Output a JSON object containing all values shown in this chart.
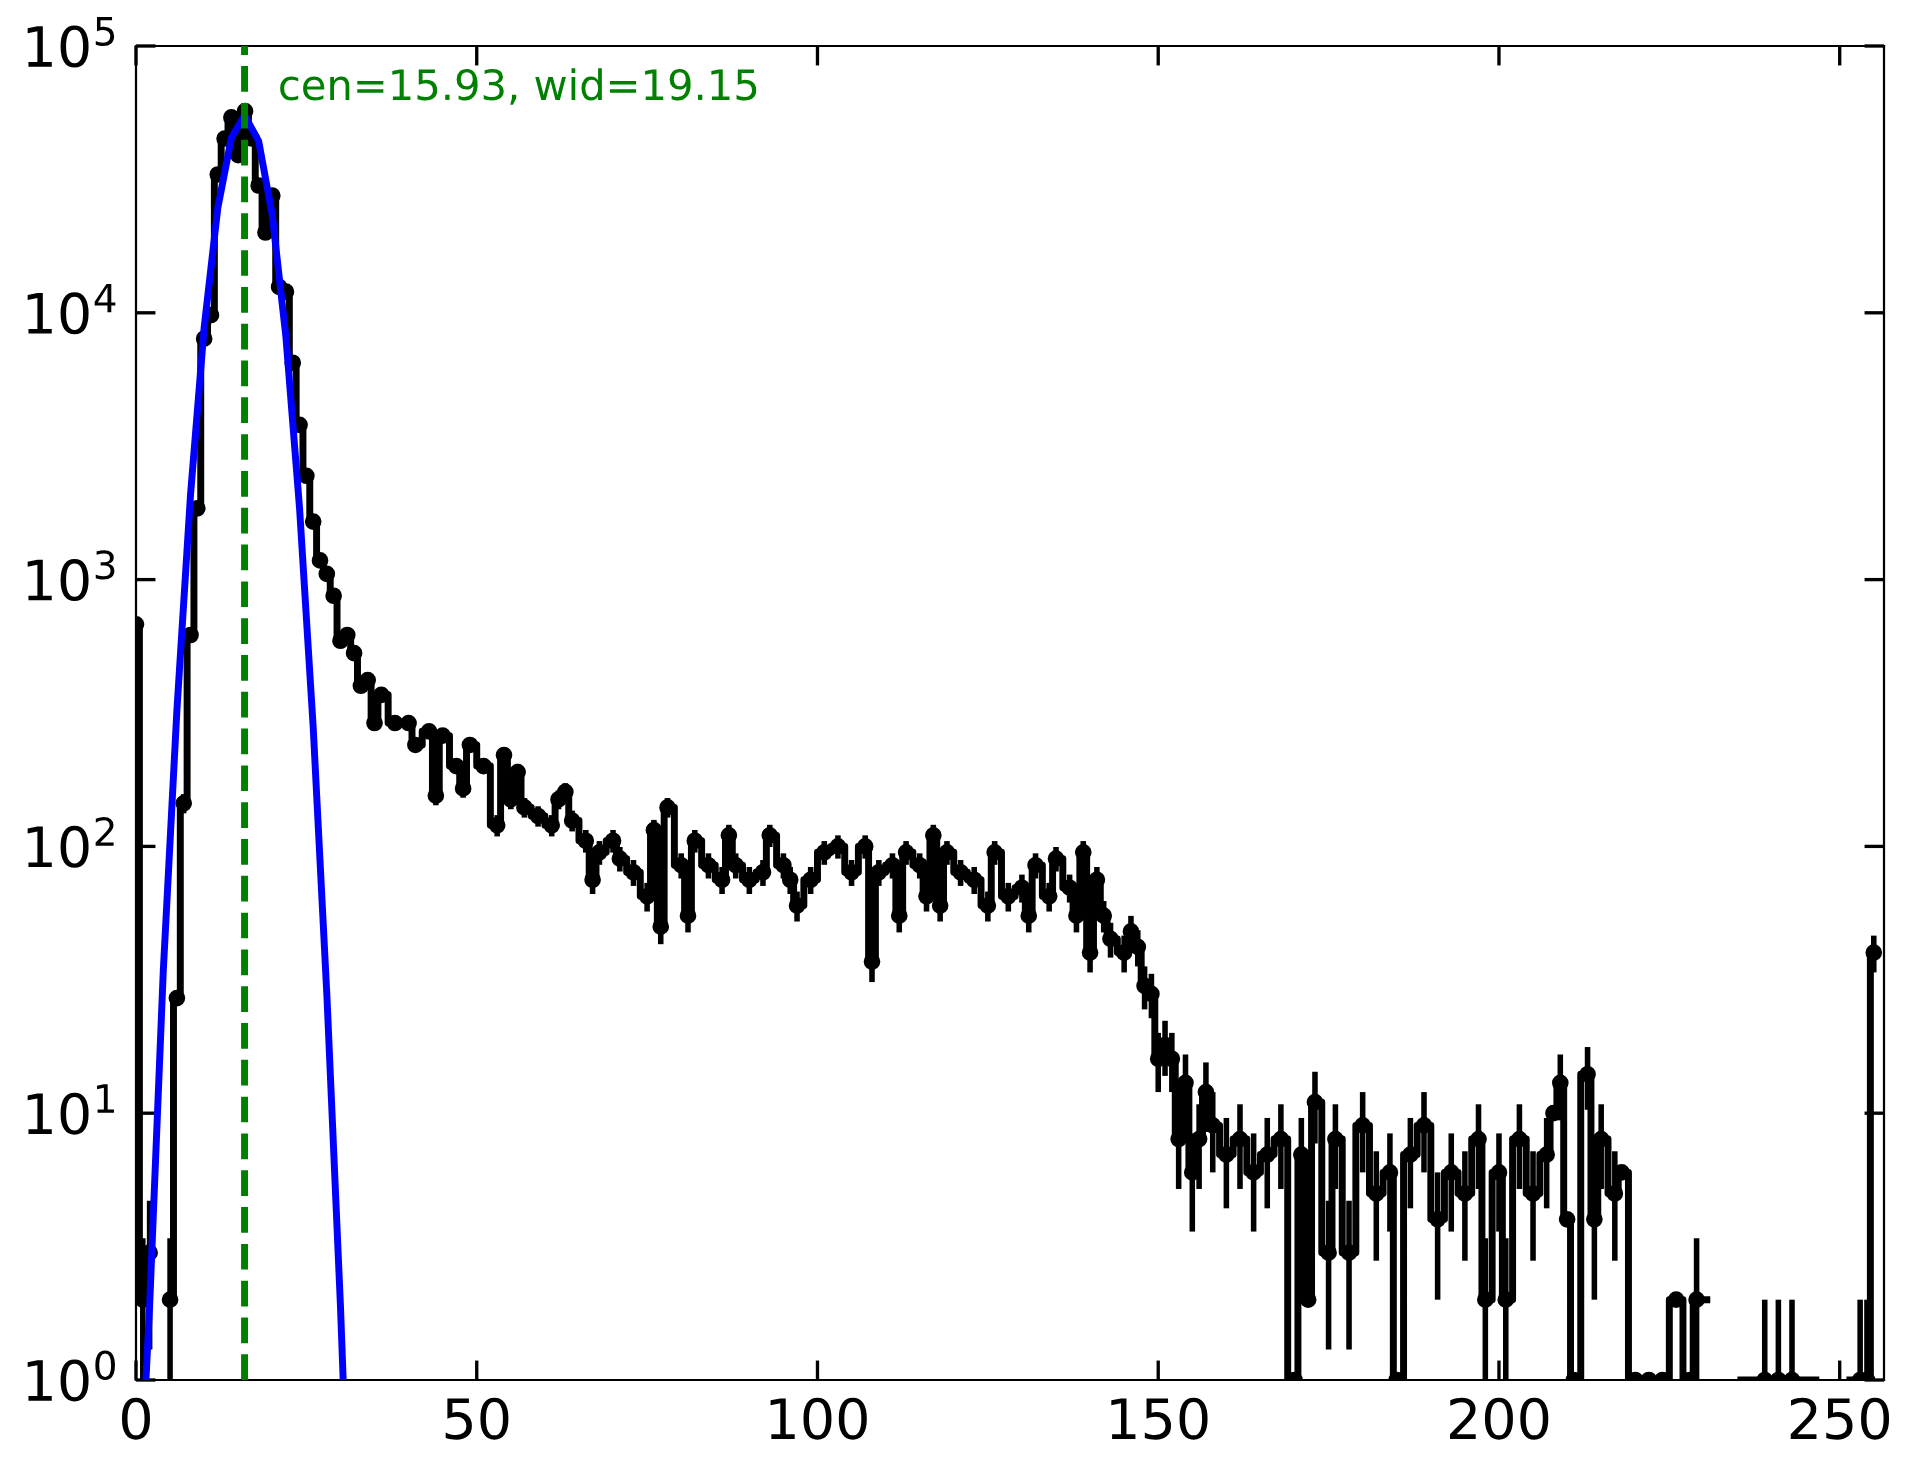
{
  "chart_data": {
    "type": "step",
    "log": "y",
    "xlim": [
      0,
      256.5
    ],
    "ylim": [
      1,
      100000
    ],
    "xticks": [
      0,
      50,
      100,
      150,
      200,
      250
    ],
    "yticks": [
      {
        "value": 1,
        "label": "10$^{0}$"
      },
      {
        "value": 10,
        "label": "10$^{1}$"
      },
      {
        "value": 100,
        "label": "10$^{2}$"
      },
      {
        "value": 1000,
        "label": "10$^{3}$"
      },
      {
        "value": 10000,
        "label": "10$^{4}$"
      },
      {
        "value": 100000,
        "label": "10$^{5}$"
      }
    ],
    "grid": false,
    "legend": false,
    "ref_lines": [
      {
        "axis": "x",
        "value": 15.93,
        "label": "cen=15.93, wid=19.15",
        "color": "#008000",
        "line_style": "dashed"
      }
    ],
    "series": [
      {
        "color": "#000000",
        "marker": "circle",
        "line_style": "solid",
        "x": [
          0,
          1,
          2,
          3,
          4,
          5,
          6,
          7,
          8,
          9,
          10,
          11,
          12,
          13,
          14,
          15,
          16,
          17,
          18,
          19,
          20,
          21,
          22,
          23,
          24,
          25,
          26,
          27,
          28,
          29,
          30,
          31,
          32,
          33,
          34,
          35,
          36,
          38,
          40,
          41,
          43,
          44,
          45,
          47,
          48,
          49,
          51,
          53,
          54,
          55,
          56,
          57,
          59,
          61,
          62,
          63,
          64,
          66,
          67,
          68,
          70,
          71,
          73,
          75,
          76,
          77,
          78,
          80,
          81,
          82,
          84,
          86,
          87,
          88,
          90,
          92,
          93,
          95,
          96,
          97,
          99,
          101,
          103,
          105,
          107,
          108,
          109,
          111,
          112,
          113,
          115,
          116,
          117,
          118,
          119,
          121,
          123,
          125,
          126,
          128,
          130,
          131,
          132,
          134,
          135,
          137,
          138,
          139,
          140,
          141,
          142,
          143,
          145,
          146,
          147,
          148,
          149,
          150,
          151,
          152,
          153,
          154,
          155,
          156,
          157,
          158,
          160,
          162,
          164,
          166,
          168,
          170,
          171,
          172,
          173,
          175,
          176,
          178,
          180,
          182,
          184,
          185,
          187,
          189,
          191,
          193,
          195,
          197,
          198,
          200,
          201,
          203,
          205,
          207,
          208,
          209,
          210,
          211,
          213,
          214,
          215,
          217,
          218,
          220,
          222,
          224,
          226,
          228,
          229,
          232,
          239,
          241,
          243,
          250,
          253,
          254,
          255
        ],
        "values": [
          680,
          2,
          3,
          null,
          null,
          2,
          27,
          145,
          620,
          1850,
          8000,
          9800,
          33000,
          45000,
          54000,
          39000,
          57000,
          45000,
          30000,
          20000,
          27500,
          12500,
          12000,
          6500,
          3800,
          2450,
          1650,
          1180,
          1050,
          870,
          590,
          620,
          530,
          400,
          420,
          290,
          370,
          290,
          290,
          240,
          270,
          155,
          260,
          200,
          165,
          240,
          200,
          120,
          220,
          150,
          190,
          140,
          130,
          120,
          150,
          160,
          125,
          105,
          75,
          95,
          105,
          90,
          80,
          65,
          115,
          50,
          140,
          85,
          55,
          105,
          85,
          75,
          110,
          85,
          75,
          80,
          110,
          85,
          75,
          60,
          75,
          95,
          100,
          80,
          100,
          37,
          80,
          85,
          55,
          95,
          85,
          65,
          110,
          60,
          95,
          80,
          75,
          60,
          95,
          65,
          70,
          55,
          85,
          65,
          90,
          70,
          55,
          95,
          40,
          75,
          55,
          45,
          40,
          48,
          42,
          30,
          28,
          16,
          18,
          16,
          8,
          13,
          6,
          8,
          12,
          9,
          7,
          8,
          6,
          7,
          8,
          1,
          7,
          2,
          11,
          3,
          8,
          3,
          9,
          5,
          6,
          1,
          7,
          9,
          4,
          6,
          5,
          8,
          2,
          6,
          2,
          8,
          5,
          7,
          10,
          13,
          4,
          1,
          14,
          4,
          8,
          5,
          6,
          1,
          1,
          1,
          2,
          1,
          2,
          null,
          1,
          1,
          1,
          null,
          1,
          1,
          40
        ],
        "errors": [
          null,
          [
            1,
            3.4
          ],
          1.7,
          null,
          null,
          [
            1,
            3.4
          ],
          null,
          12,
          null,
          null,
          null,
          null,
          null,
          null,
          null,
          null,
          null,
          null,
          null,
          null,
          null,
          null,
          null,
          null,
          null,
          null,
          null,
          null,
          null,
          null,
          null,
          null,
          null,
          null,
          null,
          null,
          null,
          null,
          null,
          null,
          null,
          12.4,
          null,
          null,
          12.8,
          null,
          null,
          11,
          null,
          12.2,
          13.8,
          11.8,
          11.4,
          11,
          12.2,
          12.6,
          11.2,
          10.2,
          8.7,
          9.7,
          10.2,
          9.5,
          8.9,
          8,
          10.7,
          7,
          11.8,
          9.2,
          7.4,
          10.2,
          9.2,
          8.7,
          10.5,
          9.2,
          8.7,
          8.9,
          10.5,
          9.2,
          8.7,
          7.7,
          8.7,
          9.7,
          10,
          8.9,
          10,
          6,
          8.9,
          9.2,
          7.4,
          9.7,
          9.2,
          8,
          10.5,
          7.7,
          9.7,
          8.9,
          8.7,
          7.7,
          9.7,
          8,
          8.4,
          7.4,
          9.2,
          8,
          9.5,
          8.4,
          7.4,
          9.7,
          6.3,
          8.7,
          7.4,
          6.7,
          6.3,
          6.9,
          6.5,
          5.5,
          5.3,
          4,
          4.2,
          4,
          2.8,
          3.6,
          2.4,
          2.8,
          3.5,
          3,
          2.6,
          2.8,
          2.4,
          2.6,
          2.8,
          null,
          2.6,
          null,
          3.3,
          1.7,
          2.8,
          1.7,
          3,
          2.2,
          2.4,
          null,
          2.6,
          3,
          2,
          2.4,
          2.2,
          2.8,
          [
            1,
            3.4
          ],
          2.4,
          [
            1,
            3.4
          ],
          2.8,
          2.2,
          2.6,
          null,
          3.6,
          null,
          null,
          3.7,
          2,
          2.8,
          2.2,
          null,
          null,
          null,
          null,
          null,
          null,
          [
            1,
            3.4
          ],
          null,
          [
            1,
            2
          ],
          [
            1,
            2
          ],
          [
            1,
            2
          ],
          null,
          [
            1,
            2
          ],
          [
            1,
            2
          ],
          6.3
        ]
      },
      {
        "type": "line",
        "color": "#0000ff",
        "marker": "none",
        "line_style": "solid",
        "x": [
          1.46,
          2,
          4,
          6,
          8,
          10,
          12,
          14,
          15.93,
          18,
          20,
          22,
          24,
          26,
          28,
          30,
          30.4
        ],
        "values": [
          1,
          1.9,
          34,
          323,
          2080,
          8800,
          24700,
          45300,
          55000,
          44000,
          23200,
          8100,
          1850,
          280,
          28,
          1.9,
          1
        ]
      }
    ]
  }
}
